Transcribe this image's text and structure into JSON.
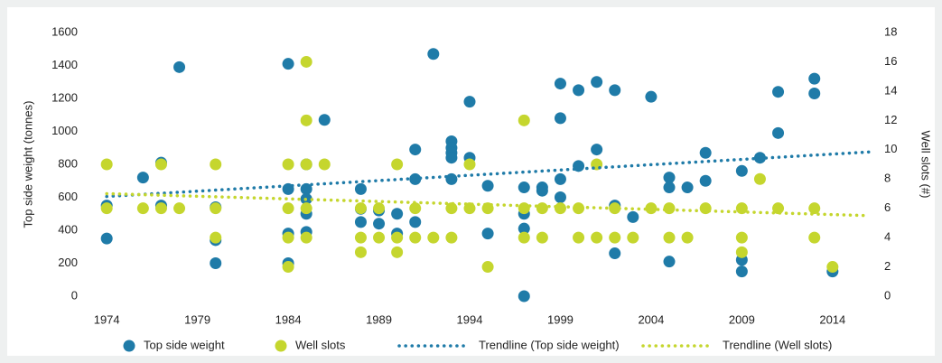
{
  "chart_data": {
    "type": "scatter",
    "y_label": "Top side weight (tonnes)",
    "y2_label": "Well slots (#)",
    "xlim": [
      1972,
      2016
    ],
    "xticks": [
      1974,
      1979,
      1984,
      1989,
      1994,
      1999,
      2004,
      2009,
      2014
    ],
    "ylim": [
      0,
      1600
    ],
    "yticks": [
      0,
      200,
      400,
      600,
      800,
      1000,
      1200,
      1400,
      1600
    ],
    "y2lim": [
      0,
      18
    ],
    "y2ticks": [
      0,
      2,
      4,
      6,
      8,
      10,
      12,
      14,
      16,
      18
    ],
    "series": [
      {
        "name": "Top side weight",
        "color": "#1f7ba8",
        "x": [
          1974,
          1974,
          1976,
          1977,
          1977,
          1978,
          1980,
          1980,
          1980,
          1984,
          1984,
          1984,
          1984,
          1985,
          1985,
          1985,
          1985,
          1985,
          1986,
          1988,
          1988,
          1988,
          1989,
          1989,
          1990,
          1990,
          1991,
          1991,
          1991,
          1992,
          1993,
          1993,
          1993,
          1993,
          1993,
          1994,
          1994,
          1995,
          1995,
          1997,
          1997,
          1997,
          1997,
          1998,
          1998,
          1999,
          1999,
          1999,
          1999,
          2000,
          2000,
          2001,
          2001,
          2002,
          2002,
          2002,
          2003,
          2004,
          2005,
          2005,
          2005,
          2006,
          2007,
          2007,
          2009,
          2009,
          2009,
          2010,
          2011,
          2011,
          2013,
          2013,
          2014
        ],
        "values": [
          550,
          350,
          720,
          810,
          550,
          1390,
          540,
          340,
          200,
          1410,
          650,
          380,
          200,
          800,
          650,
          590,
          500,
          390,
          1070,
          650,
          530,
          450,
          520,
          440,
          500,
          380,
          890,
          710,
          450,
          1470,
          940,
          900,
          870,
          840,
          710,
          1180,
          840,
          670,
          380,
          660,
          500,
          410,
          0,
          660,
          640,
          1290,
          1080,
          710,
          600,
          1250,
          790,
          1300,
          890,
          1250,
          550,
          260,
          480,
          1210,
          720,
          660,
          210,
          660,
          870,
          700,
          760,
          220,
          150,
          840,
          1240,
          990,
          1320,
          1230,
          150
        ]
      },
      {
        "name": "Well slots",
        "color": "#c5d62e",
        "axis": "y2",
        "x": [
          1974,
          1974,
          1976,
          1977,
          1977,
          1978,
          1980,
          1980,
          1980,
          1984,
          1984,
          1984,
          1984,
          1985,
          1985,
          1985,
          1985,
          1985,
          1986,
          1988,
          1988,
          1988,
          1989,
          1989,
          1990,
          1990,
          1990,
          1991,
          1991,
          1992,
          1993,
          1993,
          1994,
          1994,
          1995,
          1995,
          1997,
          1997,
          1997,
          1998,
          1998,
          1999,
          2000,
          2000,
          2001,
          2001,
          2002,
          2002,
          2003,
          2004,
          2005,
          2005,
          2006,
          2007,
          2009,
          2009,
          2009,
          2010,
          2011,
          2013,
          2013,
          2014
        ],
        "values": [
          9,
          6,
          6,
          9,
          6,
          6,
          9,
          6,
          4,
          9,
          6,
          4,
          2,
          16,
          12,
          9,
          6,
          4,
          9,
          6,
          4,
          3,
          6,
          4,
          9,
          4,
          3,
          6,
          4,
          4,
          6,
          4,
          9,
          6,
          6,
          2,
          12,
          6,
          4,
          6,
          4,
          6,
          6,
          4,
          9,
          4,
          6,
          4,
          4,
          6,
          6,
          4,
          4,
          6,
          6,
          4,
          3,
          8,
          6,
          6,
          4,
          2
        ]
      },
      {
        "name": "Trendline (Top side weight)",
        "color": "#1f7ba8",
        "line_style": "dotted",
        "x": [
          1974,
          2016
        ],
        "values": [
          605,
          875
        ]
      },
      {
        "name": "Trendline (Well slots)",
        "color": "#c5d62e",
        "line_style": "dotted",
        "axis": "y2",
        "x": [
          1974,
          2016
        ],
        "values": [
          7,
          5.5
        ]
      }
    ]
  }
}
